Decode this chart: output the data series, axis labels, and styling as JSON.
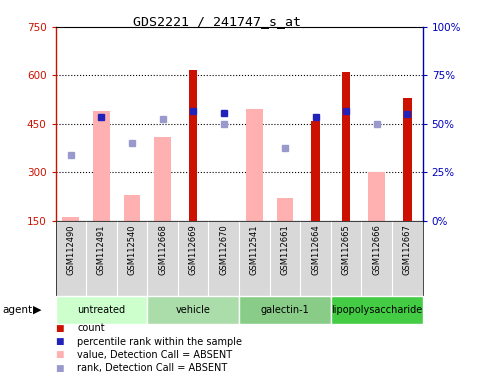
{
  "title": "GDS2221 / 241747_s_at",
  "samples": [
    "GSM112490",
    "GSM112491",
    "GSM112540",
    "GSM112668",
    "GSM112669",
    "GSM112670",
    "GSM112541",
    "GSM112661",
    "GSM112664",
    "GSM112665",
    "GSM112666",
    "GSM112667"
  ],
  "groups": [
    {
      "label": "untreated",
      "indices": [
        0,
        1,
        2
      ],
      "color": "#ccffcc"
    },
    {
      "label": "vehicle",
      "indices": [
        3,
        4,
        5
      ],
      "color": "#aaddaa"
    },
    {
      "label": "galectin-1",
      "indices": [
        6,
        7,
        8
      ],
      "color": "#88cc88"
    },
    {
      "label": "lipopolysaccharide",
      "indices": [
        9,
        10,
        11
      ],
      "color": "#44cc44"
    }
  ],
  "count_values": [
    null,
    null,
    null,
    null,
    617,
    null,
    null,
    null,
    460,
    610,
    null,
    530
  ],
  "count_absent_values": [
    162,
    490,
    230,
    410,
    null,
    null,
    495,
    220,
    null,
    null,
    300,
    null
  ],
  "rank_values": [
    null,
    470,
    null,
    null,
    490,
    485,
    null,
    null,
    472,
    490,
    null,
    480
  ],
  "rank_absent_values": [
    355,
    null,
    390,
    465,
    null,
    450,
    null,
    375,
    null,
    null,
    450,
    null
  ],
  "ylim_left": [
    150,
    750
  ],
  "ylim_right": [
    0,
    100
  ],
  "yticks_left": [
    150,
    300,
    450,
    600,
    750
  ],
  "yticks_right": [
    0,
    25,
    50,
    75,
    100
  ],
  "bar_color_red": "#cc1100",
  "bar_color_pink": "#ffb0b0",
  "dot_color_blue": "#2222bb",
  "dot_color_light": "#9999cc",
  "axis_left_color": "#cc1100",
  "axis_right_color": "#0000bb"
}
